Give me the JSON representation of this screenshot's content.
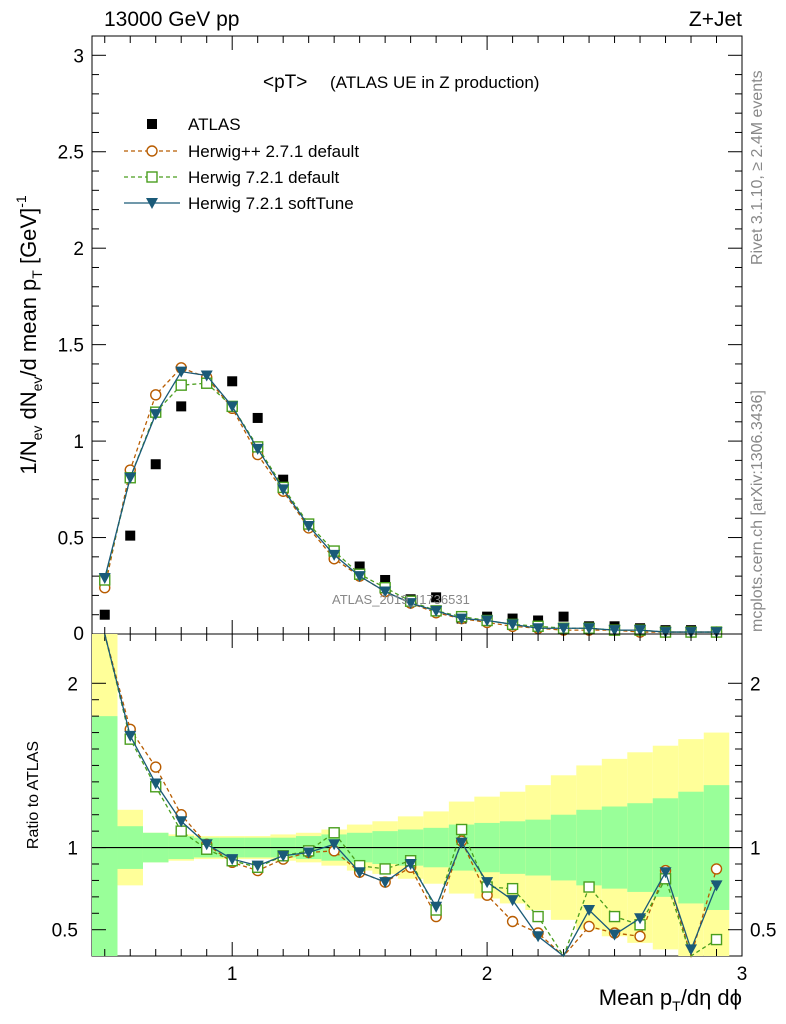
{
  "header": {
    "left": "13000 GeV pp",
    "right": "Z+Jet"
  },
  "side": {
    "rivet": "Rivet 3.1.10, ≥ 2.4M events",
    "mcplots": "mcplots.cern.ch [arXiv:1306.3436]"
  },
  "plot": {
    "title_main": "<pT>",
    "title_sub": "(ATLAS UE in Z production)",
    "watermark": "ATLAS_2019_I1736531",
    "ylabel_top": "1/N_ev dN_ev/d mean p_T [GeV]^-1",
    "ylabel_bottom": "Ratio to ATLAS",
    "xlabel": "Mean p_T/dη dϕ"
  },
  "legend": [
    {
      "label": "ATLAS"
    },
    {
      "label": "Herwig++ 2.7.1 default"
    },
    {
      "label": "Herwig 7.2.1 default"
    },
    {
      "label": "Herwig 7.2.1 softTune"
    }
  ],
  "colors": {
    "atlas": "#000000",
    "herwigpp": "#b85c00",
    "herwig7": "#4a9e1e",
    "softtune": "#1a5a78",
    "band_inner": "#99ff99",
    "band_outer": "#ffff99"
  },
  "chart_data": [
    {
      "type": "scatter",
      "panel": "main",
      "x": [
        0.5,
        0.6,
        0.7,
        0.8,
        0.9,
        1.0,
        1.1,
        1.2,
        1.3,
        1.4,
        1.5,
        1.6,
        1.7,
        1.8,
        1.9,
        2.0,
        2.1,
        2.2,
        2.3,
        2.4,
        2.5,
        2.6,
        2.7,
        2.8,
        2.9
      ],
      "xlim": [
        0.45,
        3.0
      ],
      "ylim": [
        0,
        3.1
      ],
      "yticks": [
        0.5,
        1,
        1.5,
        2,
        2.5,
        3
      ],
      "ytick_labels": [
        "0.5",
        "1",
        "1.5",
        "2",
        "2.5",
        "3"
      ],
      "series": [
        {
          "name": "ATLAS",
          "values": [
            0.1,
            0.51,
            0.88,
            1.18,
            1.3,
            1.31,
            1.12,
            0.8,
            0.56,
            0.4,
            0.35,
            0.28,
            0.18,
            0.19,
            0.08,
            0.09,
            0.08,
            0.07,
            0.09,
            0.04,
            0.04,
            0.03,
            0.02,
            0.02,
            0.01
          ]
        },
        {
          "name": "Herwig++ 2.7.1 default",
          "values": [
            0.24,
            0.85,
            1.24,
            1.38,
            1.33,
            1.17,
            0.93,
            0.74,
            0.55,
            0.39,
            0.3,
            0.22,
            0.16,
            0.11,
            0.08,
            0.06,
            0.04,
            0.03,
            0.02,
            0.02,
            0.02,
            0.01,
            0.01,
            0.01,
            0.01
          ]
        },
        {
          "name": "Herwig 7.2.1 default",
          "values": [
            0.28,
            0.81,
            1.15,
            1.29,
            1.3,
            1.18,
            0.97,
            0.76,
            0.57,
            0.43,
            0.31,
            0.24,
            0.17,
            0.12,
            0.09,
            0.07,
            0.05,
            0.04,
            0.03,
            0.03,
            0.02,
            0.02,
            0.01,
            0.01,
            0.01
          ]
        },
        {
          "name": "Herwig 7.2.1 softTune",
          "values": [
            0.29,
            0.81,
            1.14,
            1.36,
            1.34,
            1.18,
            0.96,
            0.75,
            0.56,
            0.41,
            0.3,
            0.22,
            0.16,
            0.12,
            0.08,
            0.07,
            0.05,
            0.03,
            0.03,
            0.03,
            0.02,
            0.02,
            0.01,
            0.01,
            0.01
          ]
        }
      ]
    },
    {
      "type": "line",
      "panel": "ratio",
      "x": [
        0.5,
        0.6,
        0.7,
        0.8,
        0.9,
        1.0,
        1.1,
        1.2,
        1.3,
        1.4,
        1.5,
        1.6,
        1.7,
        1.8,
        1.9,
        2.0,
        2.1,
        2.2,
        2.3,
        2.4,
        2.5,
        2.6,
        2.7,
        2.8,
        2.9
      ],
      "xlim": [
        0.45,
        3.0
      ],
      "ylim": [
        0.34,
        2.3
      ],
      "yticks": [
        0.5,
        1,
        2
      ],
      "ytick_labels": [
        "0.5",
        "1",
        "2"
      ],
      "xticks": [
        1,
        2,
        3
      ],
      "xtick_labels": [
        "1",
        "2",
        "3"
      ],
      "reference": 1,
      "band_inner_lo": [
        0.34,
        0.87,
        0.91,
        0.93,
        0.94,
        0.94,
        0.94,
        0.94,
        0.93,
        0.92,
        0.91,
        0.9,
        0.89,
        0.88,
        0.86,
        0.85,
        0.84,
        0.83,
        0.8,
        0.77,
        0.75,
        0.73,
        0.7,
        0.66,
        0.62
      ],
      "band_inner_hi": [
        1.8,
        1.13,
        1.09,
        1.07,
        1.06,
        1.06,
        1.06,
        1.06,
        1.07,
        1.08,
        1.09,
        1.1,
        1.11,
        1.12,
        1.14,
        1.15,
        1.16,
        1.17,
        1.2,
        1.23,
        1.25,
        1.27,
        1.3,
        1.34,
        1.38
      ],
      "band_outer_lo": [
        0.34,
        0.77,
        0.91,
        0.92,
        0.93,
        0.93,
        0.93,
        0.92,
        0.91,
        0.89,
        0.86,
        0.84,
        0.81,
        0.78,
        0.72,
        0.69,
        0.66,
        0.62,
        0.56,
        0.5,
        0.46,
        0.42,
        0.38,
        0.34,
        0.34
      ],
      "band_outer_hi": [
        2.3,
        1.23,
        1.09,
        1.08,
        1.07,
        1.07,
        1.07,
        1.08,
        1.09,
        1.11,
        1.14,
        1.16,
        1.19,
        1.22,
        1.28,
        1.31,
        1.34,
        1.38,
        1.44,
        1.5,
        1.54,
        1.58,
        1.62,
        1.66,
        1.7
      ],
      "series": [
        {
          "name": "Herwig++ 2.7.1 default",
          "values": [
            2.38,
            1.72,
            1.49,
            1.2,
            1.02,
            0.91,
            0.86,
            0.93,
            0.97,
            0.98,
            0.85,
            0.79,
            0.88,
            0.58,
            1.04,
            0.71,
            0.55,
            0.48,
            0.3,
            0.52,
            0.48,
            0.46,
            0.86,
            0.3,
            0.87
          ]
        },
        {
          "name": "Herwig 7.2.1 default",
          "values": [
            2.9,
            1.66,
            1.37,
            1.1,
            0.99,
            0.92,
            0.88,
            0.95,
            0.98,
            1.09,
            0.89,
            0.87,
            0.92,
            0.62,
            1.11,
            0.76,
            0.75,
            0.58,
            0.3,
            0.76,
            0.58,
            0.53,
            0.81,
            0.3,
            0.44
          ]
        },
        {
          "name": "Herwig 7.2.1 softTune",
          "values": [
            2.95,
            1.68,
            1.39,
            1.16,
            1.02,
            0.93,
            0.89,
            0.95,
            0.97,
            1.02,
            0.85,
            0.79,
            0.9,
            0.64,
            1.03,
            0.79,
            0.68,
            0.46,
            0.3,
            0.62,
            0.47,
            0.57,
            0.85,
            0.38,
            0.77
          ]
        }
      ],
      "xlabel": "Mean p_T/dη dϕ",
      "ylabel": "Ratio to ATLAS"
    }
  ]
}
